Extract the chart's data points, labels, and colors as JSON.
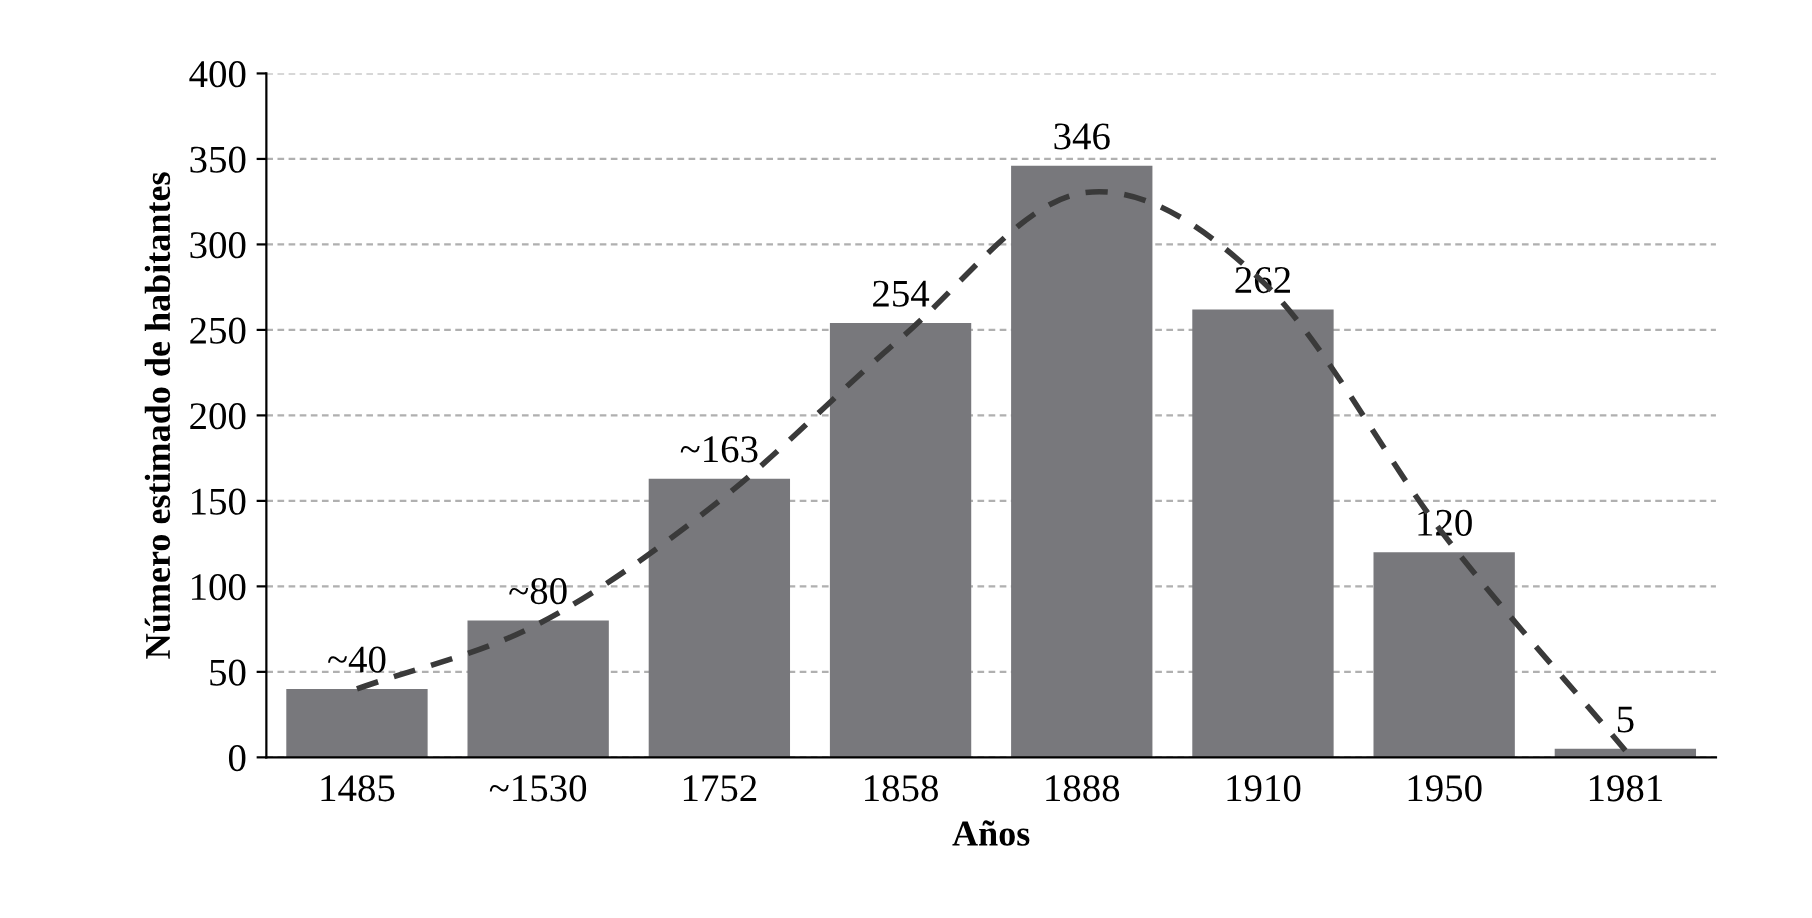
{
  "chart_data": {
    "type": "bar",
    "xlabel": "Años",
    "ylabel": "Número estimado de habitantes",
    "categories": [
      "1485",
      "~1530",
      "1752",
      "1858",
      "1888",
      "1910",
      "1950",
      "1981"
    ],
    "series": [
      {
        "color": "#78787c",
        "values": [
          40,
          80,
          163,
          254,
          346,
          262,
          120,
          5
        ],
        "value_labels": [
          "~40",
          "~80",
          "~163",
          "254",
          "346",
          "262",
          "120",
          "5"
        ]
      },
      {
        "type": "line",
        "color": "#3a3a3a",
        "line_style": "dashed",
        "values": [
          40,
          78,
          150,
          245,
          330,
          278,
          130,
          4
        ]
      }
    ],
    "ylim": [
      0,
      400
    ],
    "yticks": [
      0,
      50,
      100,
      150,
      200,
      250,
      300,
      350,
      400
    ],
    "grid": "y"
  }
}
